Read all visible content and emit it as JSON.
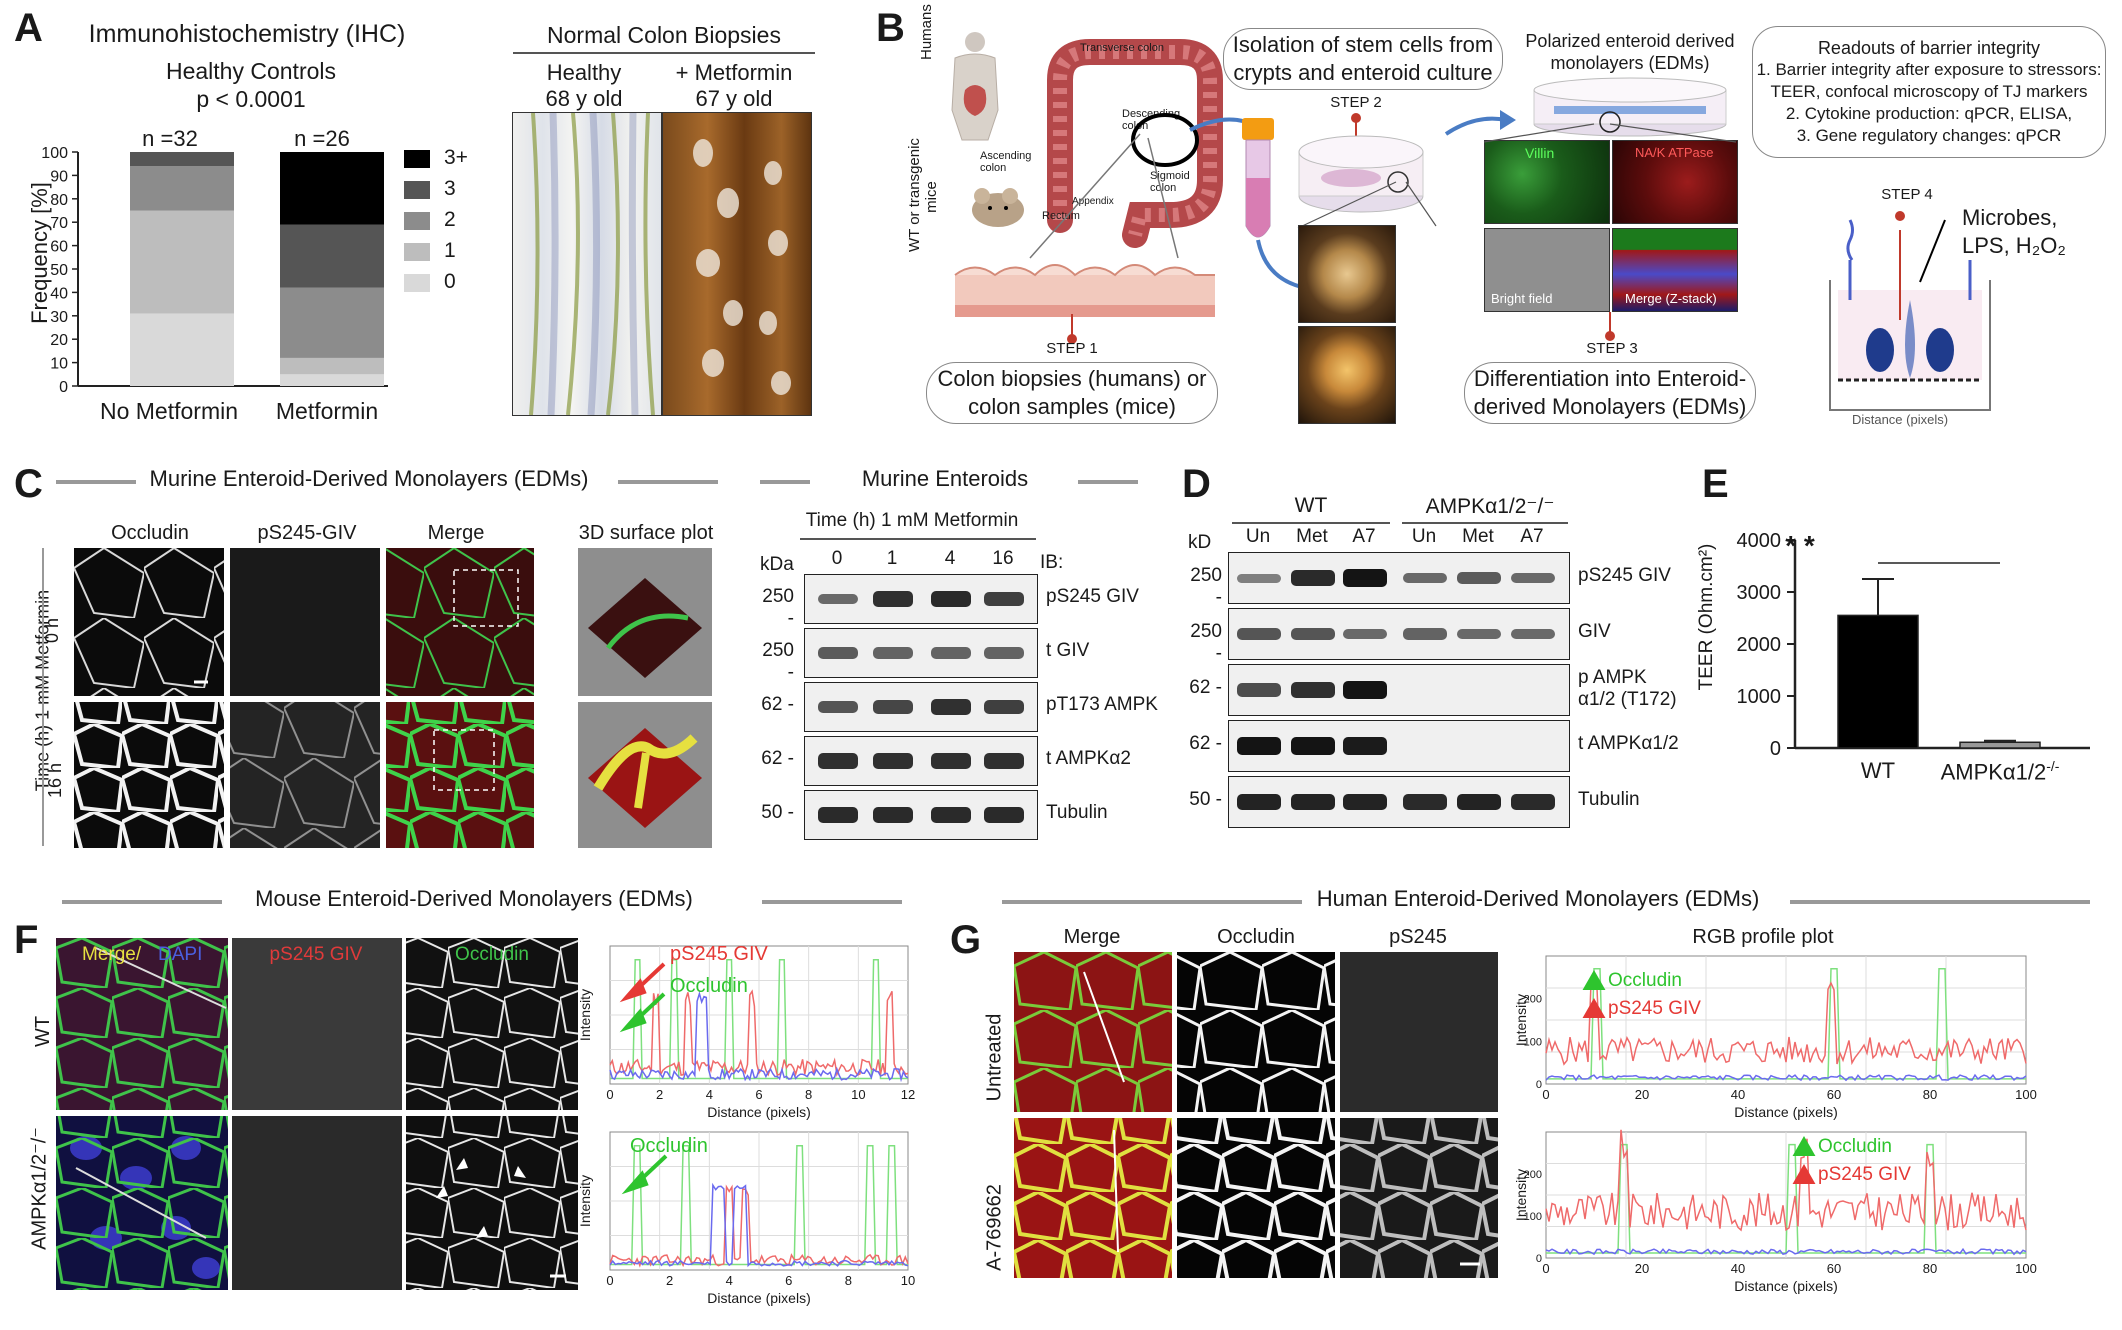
{
  "panels": {
    "A": {
      "letter": "A",
      "ihc_title": "Immunohistochemistry (IHC)",
      "group_title": "Healthy Controls",
      "pvalue": "p < 0.0001",
      "n_labels": [
        "n =32",
        "n =26"
      ],
      "ylabel": "Frequency [%]",
      "yticks": [
        "0",
        "10",
        "20",
        "30",
        "40",
        "50",
        "60",
        "70",
        "80",
        "90",
        "100"
      ],
      "categories": [
        "No Metformin",
        "Metformin"
      ],
      "legend": [
        "3+",
        "3",
        "2",
        "1",
        "0"
      ],
      "biopsy_title": "Normal Colon Biopsies",
      "biopsy_cols": [
        {
          "line1": "Healthy",
          "line2": "68 y old"
        },
        {
          "line1": "+ Metformin",
          "line2": "67 y old"
        }
      ]
    },
    "B": {
      "letter": "B",
      "side_humans": "Humans",
      "side_mice_1": "WT or transgenic",
      "side_mice_2": "mice",
      "anatomy": [
        "Transverse colon",
        "Descending colon",
        "Ascending colon",
        "Appendix",
        "Rectum",
        "Sigmoid colon"
      ],
      "step1": "STEP 1",
      "step1_box": [
        "Colon biopsies (humans) or",
        "colon samples (mice)"
      ],
      "step2": "STEP 2",
      "step2_box": [
        "Isolation of stem cells from",
        "crypts and enteroid culture"
      ],
      "edm_title": [
        "Polarized enteroid derived",
        "monolayers (EDMs)"
      ],
      "edm_tiles": [
        "Villin",
        "NA/K ATPase",
        "Bright field",
        "Merge (Z-stack)"
      ],
      "step3": "STEP 3",
      "step3_box": [
        "Differentiation into Enteroid-",
        "derived Monolayers (EDMs)"
      ],
      "readouts": [
        "Readouts of barrier integrity",
        "1. Barrier integrity after exposure to stressors:",
        "TEER, confocal microscopy of TJ markers",
        "2. Cytokine production: qPCR, ELISA,",
        "3. Gene regulatory changes: qPCR"
      ],
      "step4": "STEP 4",
      "stressors": [
        "Microbes,",
        "LPS, H₂O₂"
      ],
      "distance": "Distance (pixels)"
    },
    "C": {
      "letter": "C",
      "title_left": "Murine Enteroid-Derived Monolayers (EDMs)",
      "cols": [
        "Occludin",
        "pS245-GIV",
        "Merge",
        "3D surface plot"
      ],
      "side": "Time (h) 1 mM Metformin",
      "rows": [
        "0 h",
        "16 h"
      ],
      "title_right": "Murine Enteroids",
      "blot_header": "Time (h) 1 mM Metformin",
      "kda": "kDa",
      "lanes": [
        "0",
        "1",
        "4",
        "16"
      ],
      "ib": "IB:",
      "markers": [
        "250",
        "250",
        "62",
        "62",
        "50"
      ],
      "proteins": [
        "pS245 GIV",
        "t GIV",
        "pT173 AMPK",
        "t AMPKα2",
        "Tubulin"
      ]
    },
    "D": {
      "letter": "D",
      "groups": [
        "WT",
        "AMPKα1/2⁻/⁻"
      ],
      "kd": "kD",
      "lanes": [
        "Un",
        "Met",
        "A7",
        "Un",
        "Met",
        "A7"
      ],
      "markers": [
        "250",
        "250",
        "62",
        "62",
        "50"
      ],
      "proteins": [
        "pS245 GIV",
        "GIV",
        "p AMPK",
        "α1/2 (T172)",
        "t AMPKα1/2",
        "Tubulin"
      ]
    },
    "E": {
      "letter": "E",
      "ylabel": "TEER (Ohm.cm²)",
      "yticks": [
        "0",
        "1000",
        "2000",
        "3000",
        "4000"
      ],
      "sig": "* *",
      "categories": [
        "WT",
        "AMPKα1/2"
      ],
      "superscript": "-/-"
    },
    "F": {
      "letter": "F",
      "title": "Mouse Enteroid-Derived Monolayers (EDMs)",
      "tile_labels": [
        "Merge/",
        "DAPI",
        "pS245 GIV",
        "Occludin"
      ],
      "rows": [
        "WT",
        "AMPKα1/2⁻/⁻"
      ],
      "plot1": {
        "red": "pS245 GIV",
        "green": "Occludin",
        "ylabel": "Intensity",
        "xlabel": "Distance (pixels)",
        "xticks": [
          "0",
          "2",
          "4",
          "6",
          "8",
          "10",
          "12"
        ]
      },
      "plot2": {
        "green": "Occludin",
        "ylabel": "Intensity",
        "xlabel": "Distance (pixels)",
        "xticks": [
          "0",
          "2",
          "4",
          "6",
          "8",
          "10"
        ]
      }
    },
    "G": {
      "letter": "G",
      "title": "Human Enteroid-Derived Monolayers (EDMs)",
      "cols": [
        "Merge",
        "Occludin",
        "pS245",
        "RGB profile plot"
      ],
      "rows": [
        "Untreated",
        "A-769662"
      ],
      "plot": {
        "green": "Occludin",
        "red": "pS245 GIV",
        "ylabel": "Intensity",
        "xlabel": "Distance (pixels)",
        "xticks": [
          "0",
          "20",
          "40",
          "60",
          "80",
          "100"
        ],
        "yticks": [
          "0",
          "100",
          "200"
        ]
      }
    }
  },
  "chart_data": [
    {
      "type": "bar",
      "stacked": true,
      "categories": [
        "No Metformin",
        "Metformin"
      ],
      "series": [
        {
          "name": "0",
          "values": [
            31,
            5
          ]
        },
        {
          "name": "1",
          "values": [
            44,
            7
          ]
        },
        {
          "name": "2",
          "values": [
            19,
            30
          ]
        },
        {
          "name": "3",
          "values": [
            6,
            27
          ]
        },
        {
          "name": "3+",
          "values": [
            0,
            31
          ]
        }
      ],
      "title": "Healthy Controls",
      "ylabel": "Frequency [%]",
      "ylim": [
        0,
        100
      ],
      "colors": [
        "#d9d9d9",
        "#bdbdbd",
        "#8c8c8c",
        "#555555",
        "#000000"
      ]
    },
    {
      "type": "bar",
      "categories": [
        "WT",
        "AMPKα1/2-/-"
      ],
      "values": [
        2550,
        110
      ],
      "errors": [
        700,
        30
      ],
      "ylabel": "TEER (Ohm.cm²)",
      "ylim": [
        0,
        4000
      ]
    }
  ]
}
